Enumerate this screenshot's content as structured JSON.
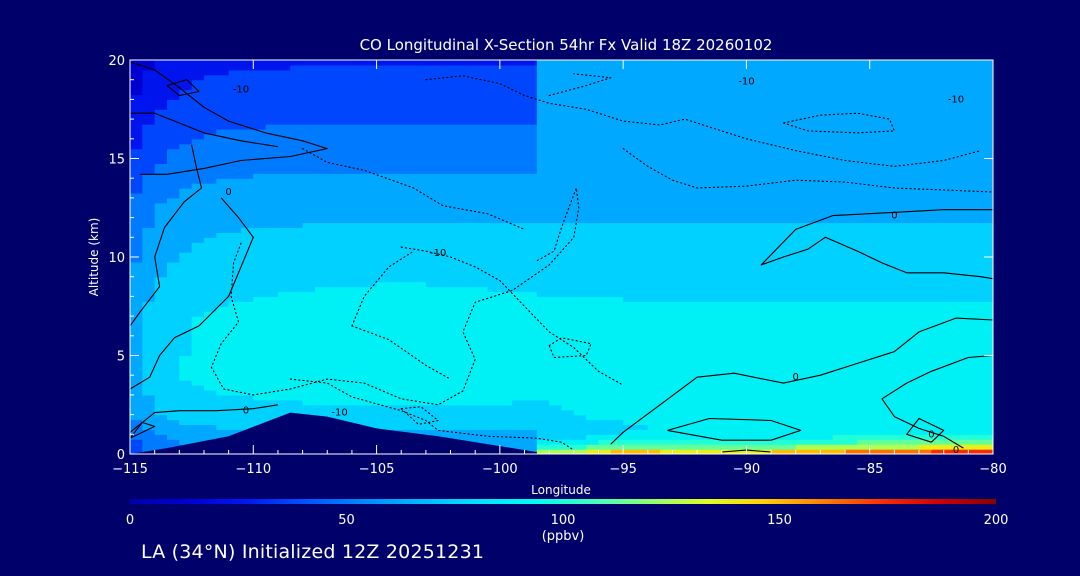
{
  "chart_data": {
    "type": "heatmap",
    "title": "CO Longitudinal X-Section 54hr  Fx Valid 18Z 20260102",
    "xlabel": "Longitude",
    "ylabel": "Altitude (km)",
    "xlim": [
      -115,
      -80
    ],
    "ylim": [
      0,
      20
    ],
    "x_ticks": [
      -115,
      -110,
      -105,
      -100,
      -95,
      -90,
      -85,
      -80
    ],
    "x_tick_labels": [
      "−115",
      "−110",
      "−105",
      "−100",
      "−95",
      "−90",
      "−85",
      "−80"
    ],
    "y_ticks": [
      0,
      5,
      10,
      15,
      20
    ],
    "y_tick_labels": [
      "0",
      "5",
      "10",
      "15",
      "20"
    ],
    "colorbar": {
      "min": 0,
      "max": 200,
      "ticks": [
        0,
        50,
        100,
        150,
        200
      ],
      "tick_labels": [
        "0",
        "50",
        "100",
        "150",
        "200"
      ],
      "units": "(ppbv)",
      "colors": [
        "#0000a8",
        "#0000d4",
        "#0018f0",
        "#0050ff",
        "#0088ff",
        "#00b8ff",
        "#00e0ff",
        "#00ffee",
        "#40ffc0",
        "#90ff70",
        "#e0ff20",
        "#ffd000",
        "#ff8000",
        "#ff3000",
        "#d00000",
        "#8c0000"
      ]
    },
    "altitude_profile": [
      {
        "alt": 0.5,
        "co": 60
      },
      {
        "alt": 2,
        "co": 78
      },
      {
        "alt": 4,
        "co": 86
      },
      {
        "alt": 7,
        "co": 84
      },
      {
        "alt": 10,
        "co": 74
      },
      {
        "alt": 12.5,
        "co": 66
      },
      {
        "alt": 15,
        "co": 52
      },
      {
        "alt": 17.5,
        "co": 40
      },
      {
        "alt": 20,
        "co": 30
      }
    ],
    "surface_maximum": [
      {
        "lon": -97.5,
        "co": 135
      },
      {
        "lon": -95,
        "co": 170
      },
      {
        "lon": -92,
        "co": 150
      },
      {
        "lon": -89,
        "co": 160
      },
      {
        "lon": -86,
        "co": 175
      },
      {
        "lon": -83,
        "co": 190
      },
      {
        "lon": -80,
        "co": 200
      }
    ],
    "terrain": [
      {
        "lon": -115,
        "alt": 0.0
      },
      {
        "lon": -113.5,
        "alt": 0.3
      },
      {
        "lon": -111,
        "alt": 0.9
      },
      {
        "lon": -108.5,
        "alt": 2.1
      },
      {
        "lon": -107,
        "alt": 1.9
      },
      {
        "lon": -105,
        "alt": 1.3
      },
      {
        "lon": -102.5,
        "alt": 0.9
      },
      {
        "lon": -100,
        "alt": 0.4
      },
      {
        "lon": -98.5,
        "alt": 0.1
      }
    ],
    "contour_labels": [
      {
        "text": "-10",
        "lon": -110.5,
        "alt": 18.5
      },
      {
        "text": "-10",
        "lon": -90,
        "alt": 18.9
      },
      {
        "text": "-10",
        "lon": -81.5,
        "alt": 18.0
      },
      {
        "text": "0",
        "lon": -111,
        "alt": 13.3
      },
      {
        "text": "0",
        "lon": -84,
        "alt": 12.1
      },
      {
        "text": "-10",
        "lon": -102.5,
        "alt": 10.2
      },
      {
        "text": "0",
        "lon": -110.3,
        "alt": 2.2
      },
      {
        "text": "-10",
        "lon": -106.5,
        "alt": 2.1
      },
      {
        "text": "0",
        "lon": -88,
        "alt": 3.9
      },
      {
        "text": "0",
        "lon": -82.5,
        "alt": 1.0
      },
      {
        "text": "0",
        "lon": -81.5,
        "alt": 0.2
      }
    ],
    "contours": [
      {
        "style": "solid",
        "points": [
          [
            -115,
            19.9
          ],
          [
            -114,
            19.5
          ],
          [
            -113,
            18.6
          ],
          [
            -112,
            17.6
          ],
          [
            -111,
            16.9
          ],
          [
            -109.5,
            16.3
          ],
          [
            -108,
            15.9
          ],
          [
            -107,
            15.5
          ],
          [
            -108.5,
            15.1
          ],
          [
            -110.5,
            14.9
          ],
          [
            -112,
            14.5
          ],
          [
            -113.5,
            14.2
          ],
          [
            -114.6,
            14.2
          ]
        ]
      },
      {
        "style": "solid",
        "points": [
          [
            -115,
            17.3
          ],
          [
            -114,
            17.3
          ],
          [
            -113,
            16.8
          ],
          [
            -112,
            16.3
          ],
          [
            -110.5,
            15.9
          ],
          [
            -109,
            15.6
          ]
        ]
      },
      {
        "style": "solid",
        "points": [
          [
            -113.5,
            18.7
          ],
          [
            -112.7,
            19.0
          ],
          [
            -112.2,
            18.4
          ],
          [
            -113,
            18.2
          ],
          [
            -113.5,
            18.7
          ]
        ]
      },
      {
        "style": "solid",
        "points": [
          [
            -112.5,
            15.7
          ],
          [
            -112.3,
            14.5
          ],
          [
            -112.1,
            13.5
          ],
          [
            -112.8,
            12.8
          ],
          [
            -113.6,
            11.5
          ],
          [
            -114.0,
            10.0
          ],
          [
            -113.8,
            8.5
          ],
          [
            -114.6,
            7.2
          ],
          [
            -115,
            6.5
          ]
        ]
      },
      {
        "style": "solid",
        "points": [
          [
            -115,
            3.3
          ],
          [
            -114.2,
            3.9
          ],
          [
            -113.8,
            5.0
          ],
          [
            -113.2,
            5.9
          ],
          [
            -112.2,
            6.5
          ],
          [
            -111.0,
            8.0
          ],
          [
            -110.5,
            9.5
          ],
          [
            -110.0,
            11.0
          ],
          [
            -110.6,
            12.0
          ],
          [
            -111.3,
            13.0
          ]
        ]
      },
      {
        "style": "solid",
        "points": [
          [
            -115,
            1.1
          ],
          [
            -114,
            2.1
          ],
          [
            -113,
            2.2
          ],
          [
            -111.5,
            2.2
          ],
          [
            -110.0,
            2.3
          ],
          [
            -109.0,
            2.5
          ]
        ]
      },
      {
        "style": "solid",
        "points": [
          [
            -115,
            0.8
          ],
          [
            -114.5,
            1.6
          ],
          [
            -114,
            1.4
          ],
          [
            -115,
            0.8
          ]
        ]
      },
      {
        "style": "solid",
        "points": [
          [
            -80,
            8.9
          ],
          [
            -80.5,
            9.0
          ],
          [
            -82.0,
            9.2
          ],
          [
            -83.5,
            9.2
          ],
          [
            -84.5,
            9.7
          ],
          [
            -85.5,
            10.3
          ],
          [
            -86.8,
            11.0
          ],
          [
            -87.5,
            10.4
          ],
          [
            -88.5,
            10.0
          ],
          [
            -89.4,
            9.6
          ],
          [
            -88.0,
            11.4
          ],
          [
            -86.5,
            12.1
          ],
          [
            -85.0,
            12.2
          ],
          [
            -83.5,
            12.3
          ],
          [
            -82.0,
            12.4
          ],
          [
            -80,
            12.4
          ]
        ]
      },
      {
        "style": "solid",
        "points": [
          [
            -80,
            6.8
          ],
          [
            -81.5,
            6.9
          ],
          [
            -83.0,
            6.2
          ],
          [
            -84.0,
            5.2
          ],
          [
            -85.5,
            4.6
          ],
          [
            -87.0,
            4.0
          ],
          [
            -88.5,
            3.6
          ],
          [
            -90.5,
            4.1
          ],
          [
            -92.0,
            3.9
          ],
          [
            -93.5,
            2.5
          ],
          [
            -95.0,
            1.1
          ],
          [
            -95.5,
            0.5
          ]
        ]
      },
      {
        "style": "solid",
        "points": [
          [
            -80,
            5.0
          ],
          [
            -81.0,
            4.9
          ],
          [
            -82.5,
            4.2
          ],
          [
            -83.5,
            3.6
          ],
          [
            -84.5,
            2.8
          ],
          [
            -84.0,
            1.9
          ],
          [
            -83.0,
            1.3
          ],
          [
            -82.0,
            0.9
          ],
          [
            -81.2,
            0.3
          ]
        ]
      },
      {
        "style": "solid",
        "points": [
          [
            -93.2,
            1.2
          ],
          [
            -91.5,
            1.8
          ],
          [
            -89.0,
            1.7
          ],
          [
            -87.8,
            1.2
          ],
          [
            -89.0,
            0.7
          ],
          [
            -91.0,
            0.7
          ],
          [
            -93.2,
            1.2
          ]
        ]
      },
      {
        "style": "solid",
        "points": [
          [
            -82.5,
            0.6
          ],
          [
            -82.0,
            1.2
          ],
          [
            -83.0,
            1.8
          ],
          [
            -83.5,
            1.0
          ],
          [
            -82.5,
            0.6
          ]
        ]
      },
      {
        "style": "solid",
        "points": [
          [
            -91.0,
            0.1
          ],
          [
            -90.0,
            0.2
          ],
          [
            -89.0,
            0.1
          ]
        ]
      },
      {
        "style": "dotted",
        "points": [
          [
            -103,
            19.0
          ],
          [
            -101.5,
            19.2
          ],
          [
            -100,
            18.8
          ],
          [
            -99,
            18.2
          ],
          [
            -98,
            17.8
          ],
          [
            -96.5,
            17.5
          ],
          [
            -95,
            16.9
          ],
          [
            -93.5,
            16.7
          ],
          [
            -92.5,
            17.0
          ],
          [
            -91.5,
            16.6
          ],
          [
            -90,
            16.0
          ],
          [
            -88,
            15.4
          ],
          [
            -86,
            14.9
          ],
          [
            -84,
            14.6
          ],
          [
            -82,
            14.9
          ],
          [
            -80.5,
            15.4
          ]
        ]
      },
      {
        "style": "dotted",
        "points": [
          [
            -88.5,
            16.8
          ],
          [
            -87.5,
            16.4
          ],
          [
            -85.5,
            16.3
          ],
          [
            -84,
            16.4
          ],
          [
            -84.2,
            17.0
          ],
          [
            -85.5,
            17.3
          ],
          [
            -87,
            17.2
          ],
          [
            -88.5,
            16.8
          ]
        ]
      },
      {
        "style": "dotted",
        "points": [
          [
            -98,
            18.2
          ],
          [
            -96.5,
            18.7
          ],
          [
            -95.5,
            19.1
          ],
          [
            -97,
            19.3
          ]
        ]
      },
      {
        "style": "dotted",
        "points": [
          [
            -95,
            15.5
          ],
          [
            -94,
            14.6
          ],
          [
            -93,
            13.9
          ],
          [
            -92,
            13.5
          ],
          [
            -90,
            13.6
          ],
          [
            -88,
            13.9
          ],
          [
            -86,
            13.8
          ],
          [
            -84,
            13.5
          ],
          [
            -82,
            13.4
          ],
          [
            -80,
            13.3
          ]
        ]
      },
      {
        "style": "dotted",
        "points": [
          [
            -110.5,
            10.7
          ],
          [
            -110.8,
            9.7
          ],
          [
            -110.9,
            8.0
          ],
          [
            -110.6,
            6.7
          ],
          [
            -111.3,
            5.6
          ],
          [
            -111.7,
            4.4
          ],
          [
            -111.2,
            3.3
          ],
          [
            -110,
            3.0
          ],
          [
            -108.5,
            3.3
          ],
          [
            -107,
            3.8
          ],
          [
            -105.5,
            3.6
          ],
          [
            -104,
            2.8
          ],
          [
            -102.5,
            2.5
          ],
          [
            -101.5,
            3.2
          ],
          [
            -101,
            4.8
          ],
          [
            -101.5,
            6.2
          ],
          [
            -101,
            7.7
          ],
          [
            -99.5,
            8.3
          ],
          [
            -98,
            9.6
          ],
          [
            -97,
            11.0
          ],
          [
            -96.8,
            12.5
          ],
          [
            -96.9,
            13.5
          ],
          [
            -97.5,
            11.5
          ],
          [
            -97.8,
            10.3
          ],
          [
            -98.5,
            9.8
          ]
        ]
      },
      {
        "style": "dotted",
        "points": [
          [
            -108,
            15.5
          ],
          [
            -107,
            14.8
          ],
          [
            -105.5,
            14.4
          ],
          [
            -103.5,
            13.5
          ],
          [
            -102.3,
            12.6
          ],
          [
            -100.5,
            12.2
          ],
          [
            -99,
            11.4
          ]
        ]
      },
      {
        "style": "dotted",
        "points": [
          [
            -104,
            10.5
          ],
          [
            -103,
            10.3
          ],
          [
            -102,
            10.0
          ],
          [
            -101,
            9.5
          ],
          [
            -100,
            8.8
          ],
          [
            -99,
            7.5
          ],
          [
            -98,
            6.2
          ],
          [
            -97,
            5.4
          ],
          [
            -96,
            4.2
          ],
          [
            -95,
            3.5
          ]
        ]
      },
      {
        "style": "dotted",
        "points": [
          [
            -106,
            6.5
          ],
          [
            -105.5,
            8.0
          ],
          [
            -104.5,
            9.5
          ],
          [
            -103.5,
            10.3
          ]
        ]
      },
      {
        "style": "dotted",
        "points": [
          [
            -106,
            6.5
          ],
          [
            -104.5,
            5.8
          ],
          [
            -103,
            4.5
          ],
          [
            -102,
            3.8
          ]
        ]
      },
      {
        "style": "dotted",
        "points": [
          [
            -98,
            5.5
          ],
          [
            -97.5,
            5.9
          ],
          [
            -96.3,
            5.6
          ],
          [
            -96.5,
            5.0
          ],
          [
            -97.8,
            4.9
          ],
          [
            -98,
            5.5
          ]
        ]
      },
      {
        "style": "dotted",
        "points": [
          [
            -108.5,
            3.8
          ],
          [
            -107,
            3.6
          ],
          [
            -106,
            2.9
          ],
          [
            -104,
            2.2
          ],
          [
            -103,
            1.7
          ],
          [
            -102.5,
            1.2
          ],
          [
            -100.5,
            0.9
          ],
          [
            -98.5,
            0.8
          ],
          [
            -97.5,
            0.6
          ],
          [
            -97,
            0.2
          ]
        ]
      },
      {
        "style": "dotted",
        "points": [
          [
            -104,
            2.3
          ],
          [
            -103.3,
            1.5
          ],
          [
            -102.5,
            1.7
          ],
          [
            -103.2,
            2.4
          ],
          [
            -104,
            2.3
          ]
        ]
      }
    ]
  },
  "footer_text": "LA (34°N) Initialized 12Z 20251231"
}
